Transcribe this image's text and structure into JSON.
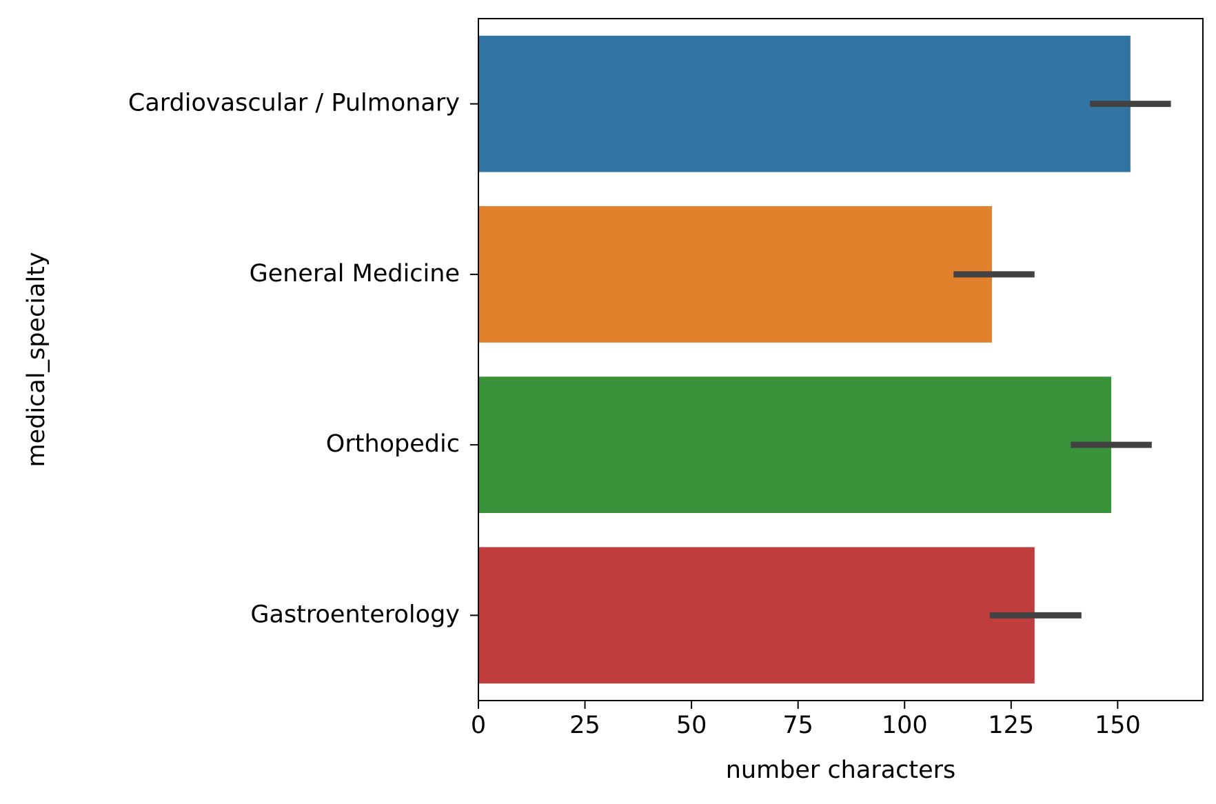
{
  "chart_data": {
    "type": "bar",
    "orientation": "horizontal",
    "categories": [
      "Cardiovascular / Pulmonary",
      "General Medicine",
      "Orthopedic",
      "Gastroenterology"
    ],
    "values": [
      153,
      120.5,
      148.5,
      130.5
    ],
    "error_bars": [
      [
        143.5,
        162.5
      ],
      [
        111.5,
        130.5
      ],
      [
        139,
        158
      ],
      [
        120,
        141.5
      ]
    ],
    "colors": [
      "#3274a1",
      "#e1812c",
      "#3a923a",
      "#c03d3e"
    ],
    "error_bar_color": "#424242",
    "xlabel": "number characters",
    "ylabel": "medical_specialty",
    "xlim": [
      0,
      170
    ],
    "xticks": [
      0,
      25,
      50,
      75,
      100,
      125,
      150
    ],
    "grid": false
  }
}
